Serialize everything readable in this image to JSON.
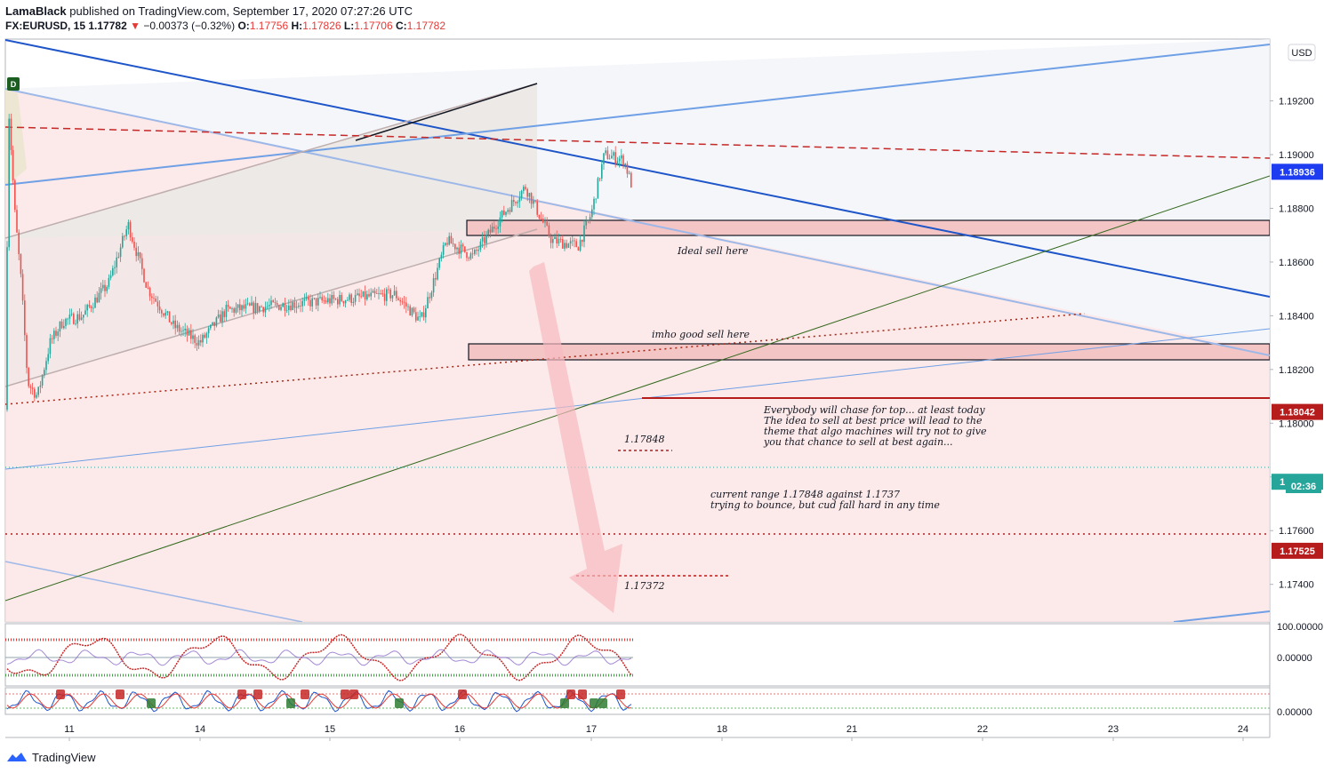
{
  "header": {
    "author": "LamaBlack",
    "published_text": "published on TradingView.com, September 17, 2020 07:27:26 UTC",
    "symbol": "FX:EURUSD, 15",
    "last": "1.17782",
    "change": "−0.00373 (−0.32%)",
    "open_label": "O:",
    "open": "1.17756",
    "high_label": "H:",
    "high": "1.17826",
    "low_label": "L:",
    "low": "1.17706",
    "close_label": "C:",
    "close": "1.17782"
  },
  "colors": {
    "bull": "#26a69a",
    "bear": "#ef5350",
    "blue_line": "#1e55c8",
    "light_blue": "#6fa0e6",
    "red_dashed": "#c62828",
    "green_line": "#33691e",
    "zone": "#f4c5c5",
    "price_tag_green": "#26a69a",
    "price_tag_red": "#b71c1c",
    "price_tag_blue": "#1e3cf0"
  },
  "chart_data": {
    "type": "candlestick",
    "symbol": "FX:EURUSD",
    "interval": "15",
    "currency": "USD",
    "x_ticks": [
      "11",
      "14",
      "15",
      "16",
      "17",
      "18",
      "21",
      "22",
      "23",
      "24"
    ],
    "y_ticks": [
      "1.19200",
      "1.19000",
      "1.18800",
      "1.18600",
      "1.18400",
      "1.18200",
      "1.18000",
      "1.17800",
      "1.17600",
      "1.17400"
    ],
    "ylim": [
      1.1726,
      1.1943
    ],
    "price_path": [
      [
        10.0,
        1.1805
      ],
      [
        10.05,
        1.1918
      ],
      [
        10.15,
        1.1878
      ],
      [
        10.25,
        1.1852
      ],
      [
        10.35,
        1.1815
      ],
      [
        10.5,
        1.181
      ],
      [
        10.7,
        1.183
      ],
      [
        10.9,
        1.1838
      ],
      [
        11.1,
        1.184
      ],
      [
        11.3,
        1.1852
      ],
      [
        11.45,
        1.1874
      ],
      [
        11.6,
        1.185
      ],
      [
        11.8,
        1.1836
      ],
      [
        12.0,
        1.183
      ],
      [
        12.2,
        1.1842
      ],
      [
        13.5,
        1.1848
      ],
      [
        13.7,
        1.1838
      ],
      [
        13.9,
        1.1868
      ],
      [
        14.1,
        1.1862
      ],
      [
        14.3,
        1.1876
      ],
      [
        14.5,
        1.1888
      ],
      [
        14.7,
        1.1868
      ],
      [
        14.9,
        1.1866
      ],
      [
        15.0,
        1.1878
      ],
      [
        15.1,
        1.19
      ],
      [
        15.25,
        1.1898
      ],
      [
        15.35,
        1.1882
      ],
      [
        15.5,
        1.1896
      ],
      [
        15.65,
        1.188
      ],
      [
        15.8,
        1.1848
      ],
      [
        15.9,
        1.1852
      ],
      [
        16.0,
        1.185
      ],
      [
        16.1,
        1.1838
      ],
      [
        16.2,
        1.1852
      ],
      [
        16.3,
        1.1862
      ],
      [
        16.45,
        1.188
      ],
      [
        16.6,
        1.187
      ],
      [
        16.75,
        1.183
      ],
      [
        16.85,
        1.1818
      ],
      [
        16.95,
        1.182
      ],
      [
        17.05,
        1.1806
      ],
      [
        17.1,
        1.1788
      ],
      [
        17.15,
        1.1765
      ],
      [
        17.2,
        1.1762
      ],
      [
        17.28,
        1.177
      ],
      [
        17.35,
        1.1778
      ]
    ],
    "y_axis_labels": [
      {
        "value": "1.18936",
        "color": "#1e3cf0"
      },
      {
        "value": "1.18042",
        "color": "#b71c1c"
      },
      {
        "value": "1.17782",
        "color": "#26a69a"
      },
      {
        "value": "1.17525",
        "color": "#b71c1c"
      }
    ],
    "countdown": "02:36",
    "annotations": {
      "ideal_sell": "Ideal sell here",
      "good_sell": "imho good sell here",
      "chase_1": "Everybody will chase for top... at least today",
      "chase_2": "The idea to sell at best price will lead to the",
      "chase_3": "theme that algo machines will try not to give",
      "chase_4": "you that chance to sell at best again...",
      "range_1": "current range 1.17848 against 1.1737",
      "range_2": "trying to bounce, but cud fall hard in any time",
      "high_level": "1.17848",
      "low_level": "1.17372"
    },
    "zones": [
      {
        "label": "Ideal sell here",
        "from": 1.1866,
        "to": 1.1872
      },
      {
        "label": "imho good sell here",
        "from": 1.1819,
        "to": 1.1825
      }
    ],
    "indicator1": {
      "ticks": [
        "100.00000",
        "0.00000"
      ]
    },
    "indicator2": {
      "ticks": [
        "0.00000"
      ]
    }
  },
  "flag_label": "D",
  "usd_label": "USD",
  "footer": {
    "brand": "TradingView"
  }
}
